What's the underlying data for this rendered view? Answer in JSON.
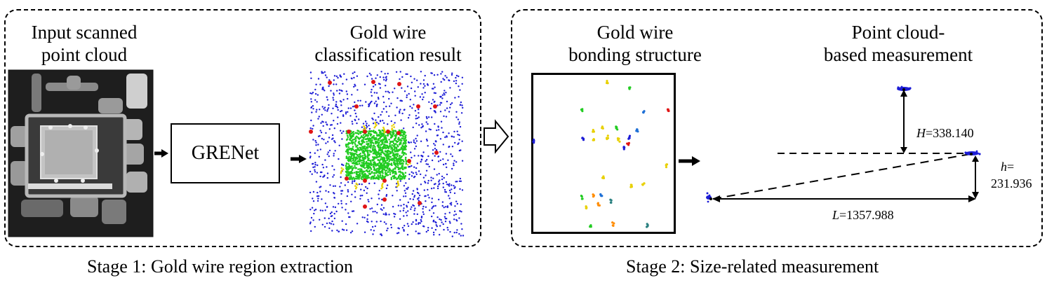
{
  "stage1": {
    "title_scan_line1": "Input scanned",
    "title_scan_line2": "point cloud",
    "model_label": "GRENet",
    "title_class_line1": "Gold wire",
    "title_class_line2": "classification result",
    "caption": "Stage 1: Gold wire region extraction"
  },
  "stage2": {
    "title_bond_line1": "Gold wire",
    "title_bond_line2": "bonding structure",
    "title_meas_line1": "Point cloud-",
    "title_meas_line2": "based measurement",
    "caption": "Stage 2: Size-related measurement"
  },
  "measurements": {
    "H_var": "H",
    "H_value": "=338.140",
    "h_var": "h",
    "h_eq": "=",
    "h_value": "231.936",
    "L_var": "L",
    "L_value": "=1357.988"
  },
  "colors": {
    "background_points": "#1d1dd6",
    "wire_points": "#22cc22",
    "endpoint_points": "#e01515",
    "yellow_points": "#e8d000",
    "chip_dark": "#2a2a2a",
    "chip_light": "#c8c8c8"
  }
}
